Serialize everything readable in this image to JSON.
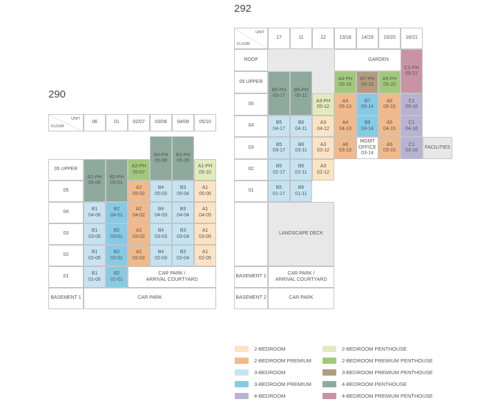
{
  "blocks": [
    {
      "title": "290",
      "unit_label": "UNIT",
      "floor_label": "FLOOR",
      "units": [
        "06",
        "01",
        "02/07",
        "03/08",
        "04/09",
        "05/10"
      ],
      "floors": [
        "05 UPPER",
        "05",
        "04",
        "03",
        "02",
        "01",
        "BASEMENT 1"
      ],
      "cells": [
        {
          "lines": [
            "B1-PH",
            "05-06"
          ],
          "color": "#8ea99d"
        },
        {
          "lines": [
            "B2-PH",
            "05-01"
          ],
          "color": "#8ea99d"
        },
        {
          "lines": [
            "A2-PH",
            "05-07"
          ],
          "color": "#a1c97c"
        },
        {
          "lines": [
            "B4-PH",
            "05-08"
          ],
          "color": "#8ea99d"
        },
        {
          "lines": [
            "B3-PH",
            "05-09"
          ],
          "color": "#8ea99d"
        },
        {
          "lines": [
            "A1-PH",
            "05-10"
          ],
          "color": "#e2ebbd"
        },
        {
          "lines": [
            "A2",
            "05-02"
          ],
          "color": "#f2b98a"
        },
        {
          "lines": [
            "B4",
            "05-03"
          ],
          "color": "#c6e3f2"
        },
        {
          "lines": [
            "B3",
            "05-04"
          ],
          "color": "#c6e3f2"
        },
        {
          "lines": [
            "A1",
            "05-05"
          ],
          "color": "#fbe3c4"
        },
        {
          "lines": [
            "B1",
            "04-06"
          ],
          "color": "#c6e3f2"
        },
        {
          "lines": [
            "B2",
            "04-01"
          ],
          "color": "#86cbe6"
        },
        {
          "lines": [
            "A2",
            "04-02"
          ],
          "color": "#f2b98a"
        },
        {
          "lines": [
            "B4",
            "04-03"
          ],
          "color": "#c6e3f2"
        },
        {
          "lines": [
            "B3",
            "04-04"
          ],
          "color": "#c6e3f2"
        },
        {
          "lines": [
            "A1",
            "04-05"
          ],
          "color": "#fbe3c4"
        },
        {
          "lines": [
            "B1",
            "03-06"
          ],
          "color": "#c6e3f2"
        },
        {
          "lines": [
            "B2",
            "03-01"
          ],
          "color": "#86cbe6"
        },
        {
          "lines": [
            "A2",
            "03-02"
          ],
          "color": "#f2b98a"
        },
        {
          "lines": [
            "B4",
            "03-03"
          ],
          "color": "#c6e3f2"
        },
        {
          "lines": [
            "B3",
            "03-04"
          ],
          "color": "#c6e3f2"
        },
        {
          "lines": [
            "A1",
            "03-05"
          ],
          "color": "#fbe3c4"
        },
        {
          "lines": [
            "B1",
            "02-06"
          ],
          "color": "#c6e3f2"
        },
        {
          "lines": [
            "B2",
            "02-01"
          ],
          "color": "#86cbe6"
        },
        {
          "lines": [
            "A2",
            "02-02"
          ],
          "color": "#f2b98a"
        },
        {
          "lines": [
            "B4",
            "02-03"
          ],
          "color": "#c6e3f2"
        },
        {
          "lines": [
            "B3",
            "02-04"
          ],
          "color": "#c6e3f2"
        },
        {
          "lines": [
            "A1",
            "02-05"
          ],
          "color": "#fbe3c4"
        },
        {
          "lines": [
            "B1",
            "01-06"
          ],
          "color": "#c6e3f2"
        },
        {
          "lines": [
            "B2",
            "01-01"
          ],
          "color": "#86cbe6"
        },
        {
          "lines": [
            "CAR PARK /",
            "ARRIVAL COURTYARD"
          ],
          "color": "#ffffff"
        },
        {
          "lines": [
            "CAR PARK"
          ],
          "color": "#ffffff"
        }
      ]
    },
    {
      "title": "292",
      "unit_label": "UNIT",
      "floor_label": "FLOOR",
      "units": [
        "17",
        "11",
        "12",
        "13/18",
        "14/19",
        "15/20",
        "16/21"
      ],
      "floors": [
        "ROOF",
        "05 UPPER",
        "05",
        "04",
        "03",
        "02",
        "01",
        "BASEMENT 1",
        "BASEMENT 2"
      ],
      "cells": [
        {
          "lines": [
            "GARDEN"
          ],
          "color": "#ffffff"
        },
        {
          "lines": [
            "C1-PH",
            "05-21"
          ],
          "color": "#c993a6"
        },
        {
          "lines": [
            "B5-PH",
            "05-17"
          ],
          "color": "#8ea99d"
        },
        {
          "lines": [
            "B6-PH",
            "05-11"
          ],
          "color": "#8ea99d"
        },
        {
          "lines": [
            "A4-PH",
            "05-18"
          ],
          "color": "#a1c97c"
        },
        {
          "lines": [
            "B7-PH",
            "05-19"
          ],
          "color": "#b39b80"
        },
        {
          "lines": [
            "A5-PH",
            "05-20"
          ],
          "color": "#a1c97c"
        },
        {
          "lines": [
            "A3-PH",
            "05-12"
          ],
          "color": "#e2ebbd"
        },
        {
          "lines": [
            "A4",
            "05-13"
          ],
          "color": "#f2b98a"
        },
        {
          "lines": [
            "B7",
            "05-14"
          ],
          "color": "#86cbe6"
        },
        {
          "lines": [
            "A5",
            "05-15"
          ],
          "color": "#f2b98a"
        },
        {
          "lines": [
            "C1",
            "05-16"
          ],
          "color": "#b8b3d3"
        },
        {
          "lines": [
            "B5",
            "04-17"
          ],
          "color": "#c6e3f2"
        },
        {
          "lines": [
            "B6",
            "04-11"
          ],
          "color": "#c6e3f2"
        },
        {
          "lines": [
            "A3",
            "04-12"
          ],
          "color": "#fbe3c4"
        },
        {
          "lines": [
            "A4",
            "04-13"
          ],
          "color": "#f2b98a"
        },
        {
          "lines": [
            "B8",
            "04-14"
          ],
          "color": "#86cbe6"
        },
        {
          "lines": [
            "A5",
            "04-15"
          ],
          "color": "#f2b98a"
        },
        {
          "lines": [
            "C1",
            "04-16"
          ],
          "color": "#b8b3d3"
        },
        {
          "lines": [
            "B5",
            "03-17"
          ],
          "color": "#c6e3f2"
        },
        {
          "lines": [
            "B6",
            "03-11"
          ],
          "color": "#c6e3f2"
        },
        {
          "lines": [
            "A3",
            "03-12"
          ],
          "color": "#fbe3c4"
        },
        {
          "lines": [
            "A6",
            "03-13"
          ],
          "color": "#f2b98a"
        },
        {
          "lines": [
            "MGMT",
            "OFFICE",
            "03-14"
          ],
          "color": "#ffffff"
        },
        {
          "lines": [
            "A5",
            "03-15"
          ],
          "color": "#f2b98a"
        },
        {
          "lines": [
            "C1",
            "03-16"
          ],
          "color": "#b8b3d3"
        },
        {
          "lines": [
            "FACILITIES"
          ],
          "color": "#e8e8e8"
        },
        {
          "lines": [
            "B5",
            "02-17"
          ],
          "color": "#c6e3f2"
        },
        {
          "lines": [
            "B6",
            "02-11"
          ],
          "color": "#c6e3f2"
        },
        {
          "lines": [
            "A3",
            "02-12"
          ],
          "color": "#fbe3c4"
        },
        {
          "lines": [
            "B5",
            "01-17"
          ],
          "color": "#c6e3f2"
        },
        {
          "lines": [
            "B6",
            "01-11"
          ],
          "color": "#c6e3f2"
        },
        {
          "lines": [
            "LANDSCAPE DECK"
          ],
          "color": "#e8e8e8"
        },
        {
          "lines": [
            "CAR PARK /",
            "ARRIVAL COURTYARD"
          ],
          "color": "#ffffff"
        },
        {
          "lines": [
            "CAR PARK"
          ],
          "color": "#ffffff"
        }
      ]
    }
  ],
  "legend": [
    {
      "label": "2-BEDROOM",
      "color": "#fbe3c4"
    },
    {
      "label": "2-BEDROOM PREMIUM",
      "color": "#f2b98a"
    },
    {
      "label": "3-BEDROOM",
      "color": "#c6e3f2"
    },
    {
      "label": "3-BEDROOM PREMIUM",
      "color": "#86cbe6"
    },
    {
      "label": "4-BEDROOM",
      "color": "#b8b3d3"
    },
    {
      "label": "2-BEDROOM PENTHOUSE",
      "color": "#e2ebbd"
    },
    {
      "label": "2-BEDROOM PREMIUM PENTHOUSE",
      "color": "#a1c97c"
    },
    {
      "label": "3-BEDROOM PREMIUM PENTHOUSE",
      "color": "#b39b80"
    },
    {
      "label": "4-BEDROOM PENTHOUSE",
      "color": "#8ea99d"
    },
    {
      "label": "4-BEDROOM PREMIUM PENTHOUSE",
      "color": "#c993a6"
    }
  ]
}
